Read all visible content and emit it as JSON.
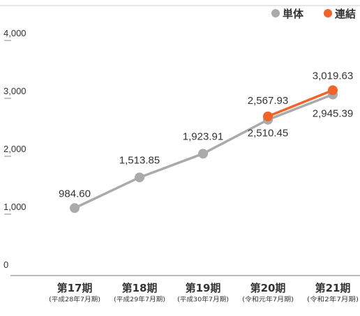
{
  "chart_data": {
    "type": "line",
    "categories": [
      "第17期",
      "第18期",
      "第19期",
      "第20期",
      "第21期"
    ],
    "category_sublabels": [
      "(平成28年7月期)",
      "(平成29年7月期)",
      "(平成30年7月期)",
      "(令和元年7月期)",
      "(令和2年7月期)"
    ],
    "series": [
      {
        "name": "単体",
        "color": "#aaaaaa",
        "values": [
          984.6,
          1513.85,
          1923.91,
          2510.45,
          2945.39
        ],
        "value_labels": [
          "984.60",
          "1,513.85",
          "1,923.91",
          "2,510.45",
          "2,945.39"
        ]
      },
      {
        "name": "連結",
        "color": "#f0642a",
        "values": [
          null,
          null,
          null,
          2567.93,
          3019.63
        ],
        "value_labels": [
          "",
          "",
          "",
          "2,567.93",
          "3,019.63"
        ]
      }
    ],
    "yticks": [
      "0",
      "1,000",
      "2,000",
      "3,000",
      "4,000"
    ],
    "ytick_values": [
      0,
      1000,
      2000,
      3000,
      4000
    ],
    "ylim": [
      0,
      4000
    ],
    "legend": "top-right",
    "grid": false
  }
}
